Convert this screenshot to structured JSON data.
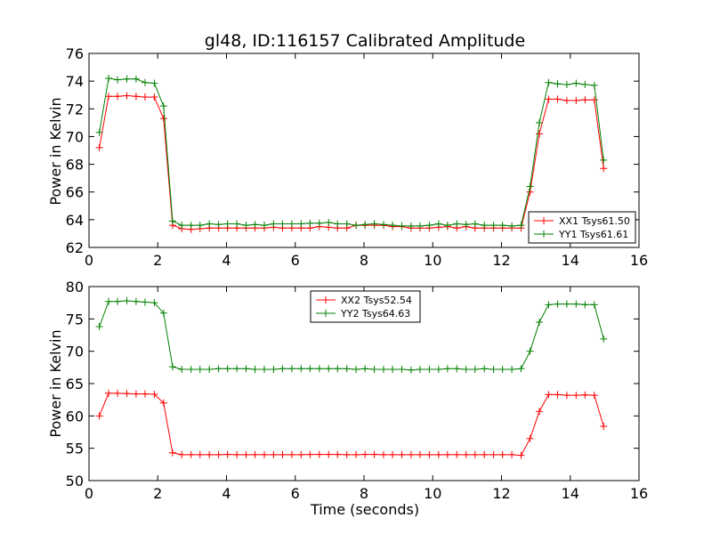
{
  "chart_data": [
    {
      "type": "line",
      "title": "gl48, ID:116157 Calibrated Amplitude",
      "xlabel": "",
      "ylabel": "Power in Kelvin",
      "xlim": [
        0,
        16
      ],
      "ylim": [
        62,
        76
      ],
      "xticks": [
        "0",
        "2",
        "4",
        "6",
        "8",
        "10",
        "12",
        "14",
        "16"
      ],
      "yticks": [
        "62",
        "64",
        "66",
        "68",
        "70",
        "72",
        "74",
        "76"
      ],
      "legend_position": "lower-right",
      "x": [
        0.3,
        0.57,
        0.83,
        1.1,
        1.37,
        1.63,
        1.9,
        2.17,
        2.43,
        2.7,
        2.97,
        3.23,
        3.5,
        3.77,
        4.03,
        4.3,
        4.57,
        4.83,
        5.1,
        5.37,
        5.63,
        5.9,
        6.17,
        6.43,
        6.7,
        6.97,
        7.23,
        7.5,
        7.77,
        8.03,
        8.3,
        8.57,
        8.83,
        9.1,
        9.37,
        9.63,
        9.9,
        10.17,
        10.43,
        10.7,
        10.97,
        11.23,
        11.5,
        11.77,
        12.03,
        12.3,
        12.57,
        12.83,
        13.1,
        13.37,
        13.63,
        13.9,
        14.17,
        14.43,
        14.7,
        14.97
      ],
      "series": [
        {
          "name": "XX1 Tsys61.50",
          "color": "#ff0000",
          "values": [
            69.2,
            72.9,
            72.9,
            72.95,
            72.9,
            72.85,
            72.85,
            71.3,
            63.6,
            63.35,
            63.3,
            63.35,
            63.4,
            63.4,
            63.4,
            63.4,
            63.4,
            63.4,
            63.4,
            63.45,
            63.4,
            63.4,
            63.4,
            63.4,
            63.5,
            63.45,
            63.4,
            63.4,
            63.6,
            63.6,
            63.6,
            63.6,
            63.5,
            63.5,
            63.4,
            63.4,
            63.4,
            63.45,
            63.5,
            63.4,
            63.5,
            63.4,
            63.4,
            63.4,
            63.4,
            63.4,
            63.4,
            66.0,
            70.2,
            72.7,
            72.7,
            72.6,
            72.6,
            72.65,
            72.65,
            67.7
          ]
        },
        {
          "name": "YY1 Tsys61.61",
          "color": "#008000",
          "values": [
            70.3,
            74.2,
            74.1,
            74.15,
            74.15,
            73.9,
            73.85,
            72.2,
            63.9,
            63.6,
            63.6,
            63.6,
            63.7,
            63.65,
            63.7,
            63.7,
            63.6,
            63.65,
            63.6,
            63.7,
            63.7,
            63.7,
            63.7,
            63.75,
            63.75,
            63.8,
            63.7,
            63.7,
            63.6,
            63.65,
            63.7,
            63.65,
            63.6,
            63.55,
            63.55,
            63.55,
            63.6,
            63.7,
            63.6,
            63.7,
            63.65,
            63.7,
            63.6,
            63.6,
            63.6,
            63.55,
            63.6,
            66.4,
            71.0,
            73.9,
            73.8,
            73.75,
            73.85,
            73.75,
            73.7,
            68.3
          ]
        }
      ]
    },
    {
      "type": "line",
      "title": "",
      "xlabel": "Time (seconds)",
      "ylabel": "Power in Kelvin",
      "xlim": [
        0,
        16
      ],
      "ylim": [
        50,
        80
      ],
      "xticks": [
        "0",
        "2",
        "4",
        "6",
        "8",
        "10",
        "12",
        "14",
        "16"
      ],
      "yticks": [
        "50",
        "55",
        "60",
        "65",
        "70",
        "75",
        "80"
      ],
      "legend_position": "top-center",
      "x": [
        0.3,
        0.57,
        0.83,
        1.1,
        1.37,
        1.63,
        1.9,
        2.17,
        2.43,
        2.7,
        2.97,
        3.23,
        3.5,
        3.77,
        4.03,
        4.3,
        4.57,
        4.83,
        5.1,
        5.37,
        5.63,
        5.9,
        6.17,
        6.43,
        6.7,
        6.97,
        7.23,
        7.5,
        7.77,
        8.03,
        8.3,
        8.57,
        8.83,
        9.1,
        9.37,
        9.63,
        9.9,
        10.17,
        10.43,
        10.7,
        10.97,
        11.23,
        11.5,
        11.77,
        12.03,
        12.3,
        12.57,
        12.83,
        13.1,
        13.37,
        13.63,
        13.9,
        14.17,
        14.43,
        14.7,
        14.97
      ],
      "series": [
        {
          "name": "XX2 Tsys52.54",
          "color": "#ff0000",
          "values": [
            60.0,
            63.5,
            63.5,
            63.45,
            63.4,
            63.4,
            63.35,
            62.0,
            54.3,
            54.0,
            54.0,
            54.0,
            54.0,
            54.0,
            54.05,
            54.0,
            54.0,
            54.0,
            54.0,
            54.0,
            54.0,
            54.0,
            54.0,
            54.05,
            54.05,
            54.05,
            54.05,
            54.0,
            54.0,
            54.05,
            54.05,
            54.0,
            54.0,
            54.0,
            54.0,
            54.0,
            54.0,
            54.0,
            54.0,
            54.0,
            54.0,
            54.0,
            54.0,
            54.0,
            54.0,
            54.0,
            53.9,
            56.5,
            60.7,
            63.3,
            63.3,
            63.2,
            63.2,
            63.25,
            63.2,
            58.4
          ]
        },
        {
          "name": "YY2 Tsys64.63",
          "color": "#008000",
          "values": [
            73.8,
            77.7,
            77.7,
            77.8,
            77.7,
            77.6,
            77.5,
            75.9,
            67.6,
            67.2,
            67.2,
            67.2,
            67.2,
            67.3,
            67.3,
            67.3,
            67.3,
            67.2,
            67.2,
            67.2,
            67.3,
            67.3,
            67.3,
            67.3,
            67.3,
            67.3,
            67.3,
            67.3,
            67.2,
            67.3,
            67.2,
            67.2,
            67.2,
            67.2,
            67.1,
            67.2,
            67.2,
            67.2,
            67.3,
            67.3,
            67.2,
            67.2,
            67.3,
            67.2,
            67.2,
            67.2,
            67.3,
            70.0,
            74.5,
            77.2,
            77.3,
            77.3,
            77.3,
            77.2,
            77.2,
            71.9
          ]
        }
      ]
    }
  ]
}
